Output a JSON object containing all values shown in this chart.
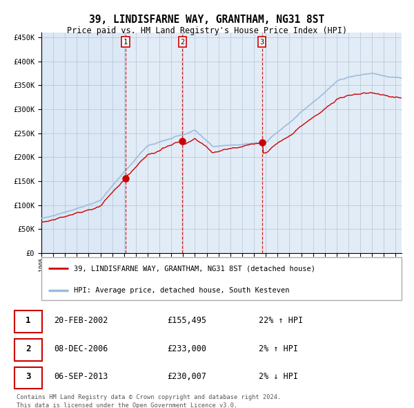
{
  "title": "39, LINDISFARNE WAY, GRANTHAM, NG31 8ST",
  "subtitle": "Price paid vs. HM Land Registry's House Price Index (HPI)",
  "legend_red": "39, LINDISFARNE WAY, GRANTHAM, NG31 8ST (detached house)",
  "legend_blue": "HPI: Average price, detached house, South Kesteven",
  "footer1": "Contains HM Land Registry data © Crown copyright and database right 2024.",
  "footer2": "This data is licensed under the Open Government Licence v3.0.",
  "sales": [
    {
      "num": 1,
      "date": "20-FEB-2002",
      "price": 155495,
      "pct": "22%",
      "dir": "↑"
    },
    {
      "num": 2,
      "date": "08-DEC-2006",
      "price": 233000,
      "pct": "2%",
      "dir": "↑"
    },
    {
      "num": 3,
      "date": "06-SEP-2013",
      "price": 230007,
      "pct": "2%",
      "dir": "↓"
    }
  ],
  "sale_dates_numeric": [
    2002.13,
    2006.94,
    2013.68
  ],
  "sale_prices": [
    155495,
    233000,
    230007
  ],
  "ylim": [
    0,
    460000
  ],
  "xlim_start": 1995.0,
  "xlim_end": 2025.5,
  "bg_color": "#dce8f5",
  "grid_color": "#b0c4d8",
  "red_color": "#cc0000",
  "blue_color": "#99bbdd",
  "dashed_color": "#cc0000"
}
